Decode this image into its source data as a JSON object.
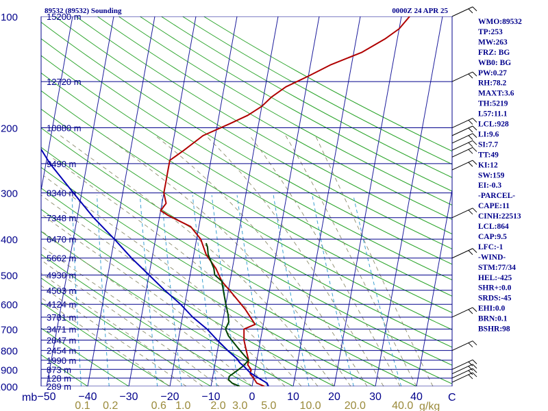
{
  "header": {
    "title": "89532 (89532) Sounding",
    "time": "0000Z 24 APR 25"
  },
  "colors": {
    "isobar": "#00008b",
    "isotherm": "#1c1c9c",
    "dry_adiabat": "#2aa42a",
    "moist_adiabat": "#8c8c6c",
    "mixing_ratio": "#3aa0d0",
    "temperature": "#b00000",
    "dewpoint": "#004400",
    "parcel": "#0000b4",
    "text": "#00008b",
    "mixing_label": "#9a8a3a"
  },
  "chart_data": {
    "type": "line",
    "subtype": "skew-T log-P",
    "y_axis": {
      "scale": "log",
      "range": [
        1000,
        100
      ],
      "unit_label": "mb",
      "tick_labels": [
        "100",
        "200",
        "300",
        "400",
        "500",
        "600",
        "700",
        "800",
        "900",
        "1000"
      ]
    },
    "x_axis": {
      "unit_label": "C",
      "range": [
        -50,
        50
      ],
      "tick_labels": [
        "−50",
        "−40",
        "−30",
        "−20",
        "−10",
        "0",
        "10",
        "20",
        "30",
        "40"
      ]
    },
    "mixing_ratio_axis": {
      "unit_label": "g/kg",
      "tick_labels": [
        "0.1",
        "0.2",
        "0.6",
        "1.0",
        "2.0",
        "3.0",
        "5.0",
        "10.0",
        "20.0",
        "40.0"
      ]
    },
    "height_labels": [
      {
        "p": 100,
        "label": "15200 m"
      },
      {
        "p": 150,
        "label": "12720 m"
      },
      {
        "p": 200,
        "label": "10880 m"
      },
      {
        "p": 250,
        "label": "9490 m"
      },
      {
        "p": 300,
        "label": "8340 m"
      },
      {
        "p": 350,
        "label": "7348 m"
      },
      {
        "p": 400,
        "label": "6470 m"
      },
      {
        "p": 450,
        "label": "5662 m"
      },
      {
        "p": 500,
        "label": "4930 m"
      },
      {
        "p": 550,
        "label": "4503 m"
      },
      {
        "p": 600,
        "label": "4124 m"
      },
      {
        "p": 650,
        "label": "3781 m"
      },
      {
        "p": 700,
        "label": "3471 m"
      },
      {
        "p": 750,
        "label": "2847 m"
      },
      {
        "p": 800,
        "label": "2454 m"
      },
      {
        "p": 850,
        "label": "1990 m"
      },
      {
        "p": 900,
        "label": "873 m"
      },
      {
        "p": 950,
        "label": "128 m"
      },
      {
        "p": 1000,
        "label": "289 m"
      }
    ],
    "series": [
      {
        "key": "temperature",
        "points": [
          [
            1000,
            3
          ],
          [
            980,
            1
          ],
          [
            950,
            0
          ],
          [
            925,
            -1
          ],
          [
            900,
            -1
          ],
          [
            875,
            -2
          ],
          [
            850,
            -2
          ],
          [
            800,
            -3
          ],
          [
            750,
            -4
          ],
          [
            700,
            -4.5
          ],
          [
            680,
            -2
          ],
          [
            620,
            -5
          ],
          [
            560,
            -9
          ],
          [
            520,
            -12
          ],
          [
            480,
            -14
          ],
          [
            440,
            -17
          ],
          [
            400,
            -19
          ],
          [
            370,
            -22
          ],
          [
            345,
            -28
          ],
          [
            335,
            -30
          ],
          [
            320,
            -29
          ],
          [
            300,
            -30
          ],
          [
            280,
            -30
          ],
          [
            260,
            -30
          ],
          [
            245,
            -30
          ],
          [
            230,
            -27
          ],
          [
            210,
            -23
          ],
          [
            195,
            -17
          ],
          [
            185,
            -13
          ],
          [
            175,
            -10
          ],
          [
            165,
            -8
          ],
          [
            155,
            -5
          ],
          [
            145,
            0
          ],
          [
            135,
            5
          ],
          [
            125,
            12
          ],
          [
            115,
            17
          ],
          [
            108,
            20
          ],
          [
            100,
            22
          ]
        ]
      },
      {
        "key": "dewpoint",
        "points": [
          [
            1000,
            -3
          ],
          [
            980,
            -5
          ],
          [
            960,
            -6
          ],
          [
            940,
            -6
          ],
          [
            920,
            -5
          ],
          [
            900,
            -4
          ],
          [
            880,
            -3
          ],
          [
            850,
            -2
          ],
          [
            820,
            -3.5
          ],
          [
            790,
            -5
          ],
          [
            760,
            -6.5
          ],
          [
            730,
            -8
          ],
          [
            700,
            -9
          ],
          [
            670,
            -8.5
          ],
          [
            640,
            -9
          ],
          [
            600,
            -10
          ],
          [
            560,
            -11
          ],
          [
            520,
            -12
          ],
          [
            500,
            -14
          ],
          [
            480,
            -14.5
          ],
          [
            440,
            -16.5
          ],
          [
            420,
            -17
          ],
          [
            410,
            -17.5
          ]
        ]
      },
      {
        "key": "parcel",
        "points": [
          [
            1000,
            4
          ],
          [
            980,
            3.5
          ],
          [
            960,
            2
          ],
          [
            940,
            0.5
          ],
          [
            920,
            -1
          ],
          [
            900,
            -2
          ],
          [
            880,
            -3
          ],
          [
            864,
            -4
          ],
          [
            840,
            -5
          ],
          [
            800,
            -7.5
          ],
          [
            750,
            -10.5
          ],
          [
            700,
            -13.5
          ],
          [
            650,
            -17.5
          ],
          [
            600,
            -21
          ],
          [
            550,
            -25.5
          ],
          [
            500,
            -30
          ],
          [
            450,
            -35
          ],
          [
            400,
            -40
          ],
          [
            350,
            -46
          ],
          [
            300,
            -52
          ],
          [
            250,
            -59
          ],
          [
            200,
            -66
          ],
          [
            170,
            -70
          ],
          [
            150,
            -72
          ],
          [
            130,
            -75
          ],
          [
            115,
            -77.5
          ],
          [
            103,
            -80
          ]
        ]
      }
    ],
    "wind_barbs": [
      {
        "p": 100,
        "label": ""
      },
      {
        "p": 150,
        "label": ""
      },
      {
        "p": 200,
        "label": ""
      },
      {
        "p": 210,
        "label": ""
      },
      {
        "p": 220,
        "label": ""
      },
      {
        "p": 230,
        "label": ""
      },
      {
        "p": 240,
        "label": ""
      },
      {
        "p": 260,
        "label": ""
      },
      {
        "p": 350,
        "label": ""
      },
      {
        "p": 450,
        "label": ""
      },
      {
        "p": 650,
        "label": ""
      },
      {
        "p": 800,
        "label": ""
      },
      {
        "p": 900,
        "label": ""
      },
      {
        "p": 925,
        "label": ""
      },
      {
        "p": 950,
        "label": ""
      },
      {
        "p": 975,
        "label": ""
      }
    ]
  },
  "indices": [
    "WMO:89532",
    "TP:253",
    "MW:263",
    "FRZ: BG",
    "WB0: BG",
    "PW:0.27",
    "RH:78.2",
    "MAXT:3.6",
    "TH:5219",
    "L57:11.1",
    "LCL:928",
    "LI:9.6",
    "SI:7.7",
    "TT:49",
    "KI:12",
    "SW:159",
    "EI:-0.3",
    "-PARCEL-",
    "CAPE:11",
    "CINH:22513",
    "LCL:864",
    "CAP:9.5",
    "LFC:-1",
    "-WIND-",
    "STM:77/34",
    "HEL:-425",
    "SHR+:0.0",
    "SRDS:-45",
    "EHI:0.0",
    "BRN:0.1",
    "BSHR:98"
  ]
}
